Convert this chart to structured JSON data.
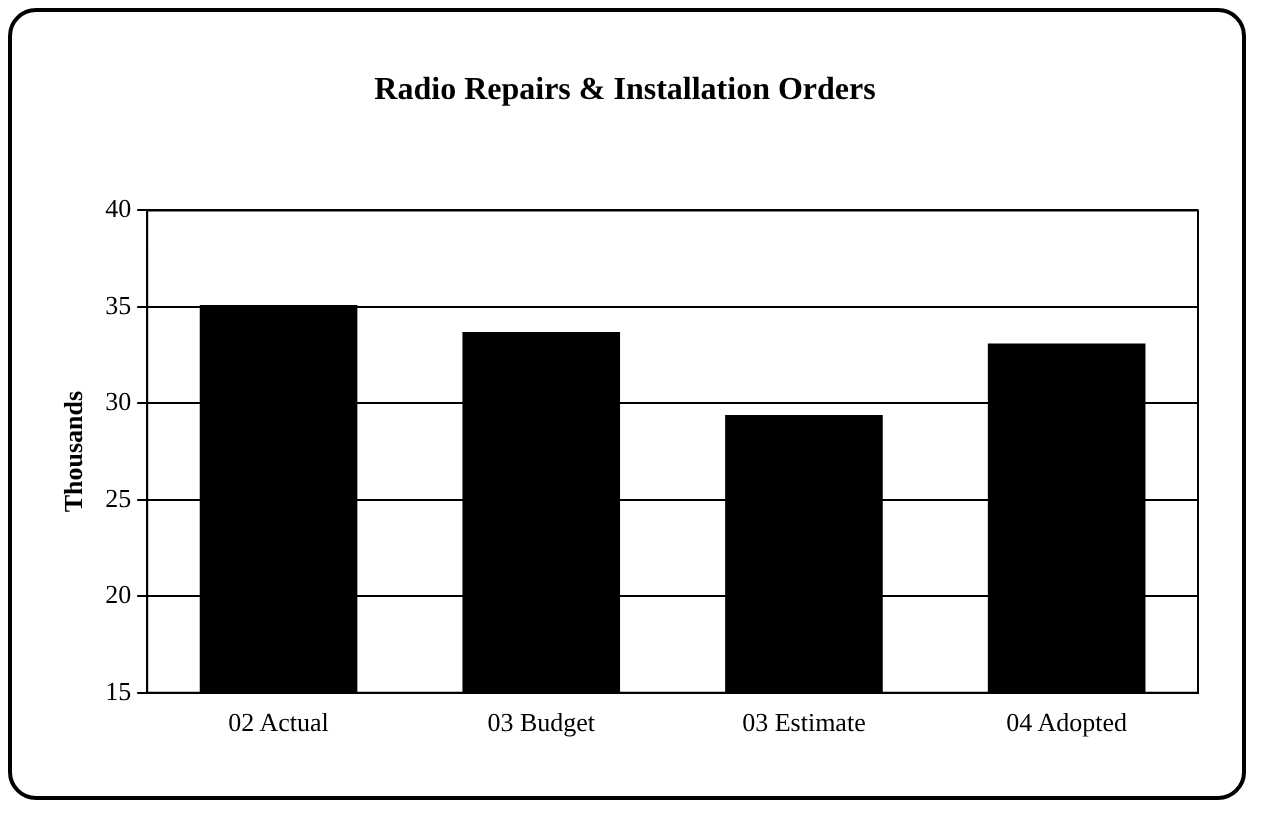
{
  "chart_data": {
    "type": "bar",
    "title": "Radio Repairs & Installation Orders",
    "ylabel": "Thousands",
    "categories": [
      "02 Actual",
      "03 Budget",
      "03 Estimate",
      "04 Adopted"
    ],
    "values": [
      35.1,
      33.7,
      29.4,
      33.1
    ],
    "color": "#000000",
    "ylim": [
      15,
      40
    ],
    "yticks": [
      15,
      20,
      25,
      30,
      35,
      40
    ],
    "grid": "y",
    "legend": false
  }
}
